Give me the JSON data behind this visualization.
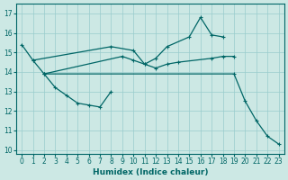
{
  "xlabel": "Humidex (Indice chaleur)",
  "bg_color": "#cce8e4",
  "grid_color": "#99cccc",
  "line_color": "#006666",
  "ylim": [
    9.8,
    17.5
  ],
  "xlim": [
    -0.5,
    23.5
  ],
  "yticks": [
    10,
    11,
    12,
    13,
    14,
    15,
    16,
    17
  ],
  "xticks": [
    0,
    1,
    2,
    3,
    4,
    5,
    6,
    7,
    8,
    9,
    10,
    11,
    12,
    13,
    14,
    15,
    16,
    17,
    18,
    19,
    20,
    21,
    22,
    23
  ],
  "line1_x": [
    0,
    1,
    8,
    10,
    11,
    12,
    13,
    15,
    16,
    17,
    18
  ],
  "line1_y": [
    15.4,
    14.6,
    15.3,
    15.1,
    14.4,
    14.7,
    15.3,
    15.8,
    16.8,
    15.9,
    15.8
  ],
  "line2_x": [
    1,
    2,
    9,
    10,
    11,
    12,
    13,
    14,
    17,
    18,
    19
  ],
  "line2_y": [
    14.6,
    13.9,
    14.8,
    14.6,
    14.4,
    14.2,
    14.4,
    14.5,
    14.7,
    14.8,
    14.8
  ],
  "line3_x": [
    2,
    3,
    4,
    5,
    6,
    7,
    8
  ],
  "line3_y": [
    13.9,
    13.2,
    12.8,
    12.4,
    12.3,
    12.2,
    13.0
  ],
  "line4_x": [
    2,
    19,
    20,
    21,
    22,
    23
  ],
  "line4_y": [
    13.9,
    13.9,
    12.5,
    11.5,
    10.7,
    10.3
  ]
}
